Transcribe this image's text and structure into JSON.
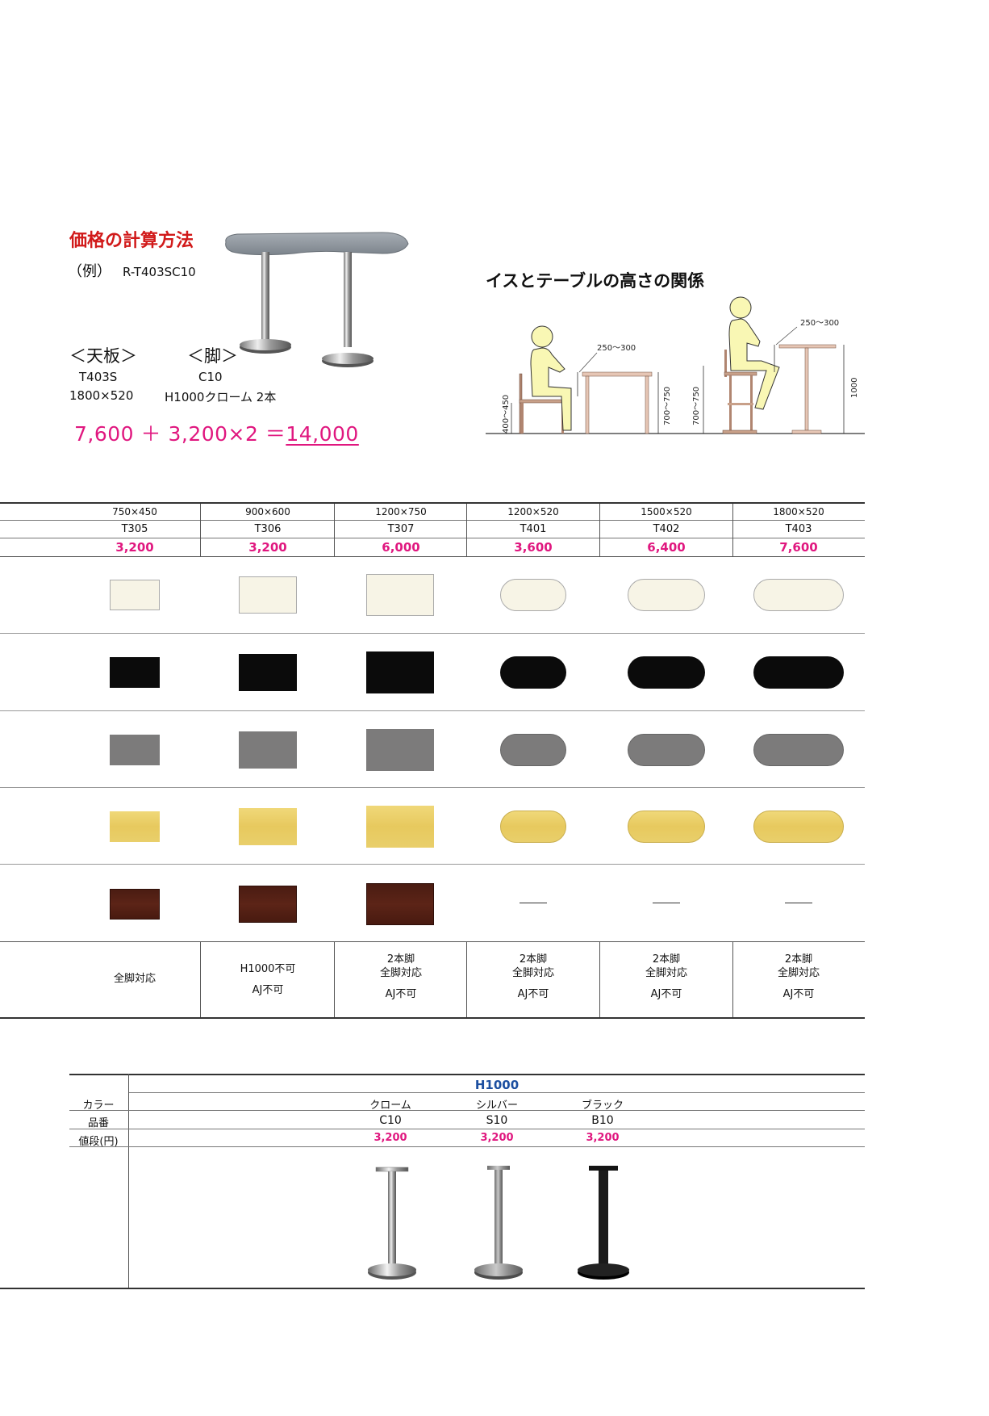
{
  "calc": {
    "title": "価格の計算方法",
    "example_label": "（例）",
    "example_code": "R-T403SC10",
    "top_label": "＜天板＞",
    "leg_label": "＜脚＞",
    "top_code": "T403S",
    "top_size": "1800×520",
    "leg_code": "C10",
    "leg_desc": "H1000クローム 2本",
    "formula": "7,600 ＋ 3,200×2 ＝",
    "total": "14,000"
  },
  "diagram": {
    "title": "イスとテーブルの高さの関係",
    "left_gap": "250～300",
    "left_seat": "400～450",
    "left_table": "700～750",
    "right_gap": "250～300",
    "right_seat": "700～750",
    "right_table": "1000"
  },
  "tops": {
    "columns": [
      {
        "size": "750×450",
        "code": "T305",
        "price": "3,200",
        "note_lines": [
          "全脚対応"
        ]
      },
      {
        "size": "900×600",
        "code": "T306",
        "price": "3,200",
        "note_lines": [
          "H1000不可",
          "AJ不可"
        ]
      },
      {
        "size": "1200×750",
        "code": "T307",
        "price": "6,000",
        "note_lines": [
          "2本脚",
          "全脚対応",
          "AJ不可"
        ]
      },
      {
        "size": "1200×520",
        "code": "T401",
        "price": "3,600",
        "note_lines": [
          "2本脚",
          "全脚対応",
          "AJ不可"
        ]
      },
      {
        "size": "1500×520",
        "code": "T402",
        "price": "6,400",
        "note_lines": [
          "2本脚",
          "全脚対応",
          "AJ不可"
        ]
      },
      {
        "size": "1800×520",
        "code": "T403",
        "price": "7,600",
        "note_lines": [
          "2本脚",
          "全脚対応",
          "AJ不可"
        ]
      }
    ],
    "finishes": [
      "white",
      "black",
      "gray",
      "oak",
      "walnut"
    ],
    "finish_colors": {
      "white": "#f7f4e6",
      "black": "#0b0b0b",
      "gray": "#7c7b7b",
      "oak": "#e9cd66",
      "walnut": "#521f14"
    },
    "unavailable_mark": "——"
  },
  "legs": {
    "header": "H1000",
    "row_labels": [
      "カラー",
      "品番",
      "値段(円)"
    ],
    "items": [
      {
        "color": "クローム",
        "code": "C10",
        "price": "3,200"
      },
      {
        "color": "シルバー",
        "code": "S10",
        "price": "3,200"
      },
      {
        "color": "ブラック",
        "code": "B10",
        "price": "3,200"
      }
    ],
    "price_color": "#e0177f",
    "header_color": "#1c4fa0"
  }
}
